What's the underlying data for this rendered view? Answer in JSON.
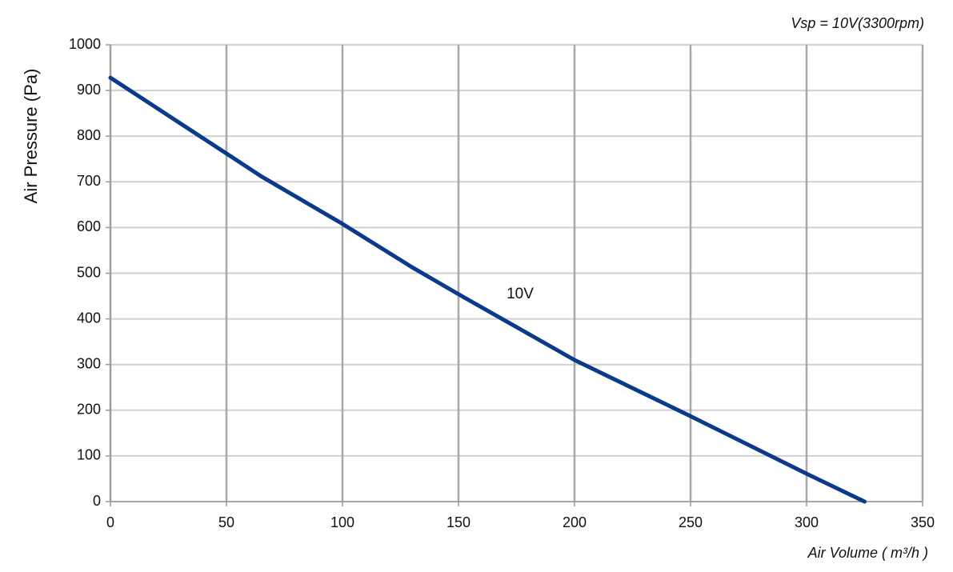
{
  "chart_data": {
    "type": "line",
    "subtitle": "Vsp = 10V(3300rpm)",
    "x_label": "Air Volume ( m³/h )",
    "y_label": "Air Pressure  (Pa)",
    "x": [
      0,
      50,
      65,
      100,
      130,
      150,
      200,
      250,
      300,
      325
    ],
    "series": [
      {
        "name": "10V",
        "color": "#0a3a8a",
        "values": [
          928,
          762,
          712,
          608,
          513,
          454,
          310,
          187,
          61,
          0
        ]
      }
    ],
    "xlim": [
      0,
      350
    ],
    "xticks": [
      0,
      50,
      100,
      150,
      200,
      250,
      300,
      350
    ],
    "ylim": [
      0,
      1000
    ],
    "yticks": [
      0,
      100,
      200,
      300,
      400,
      500,
      600,
      700,
      800,
      900,
      1000
    ],
    "grid": true
  }
}
